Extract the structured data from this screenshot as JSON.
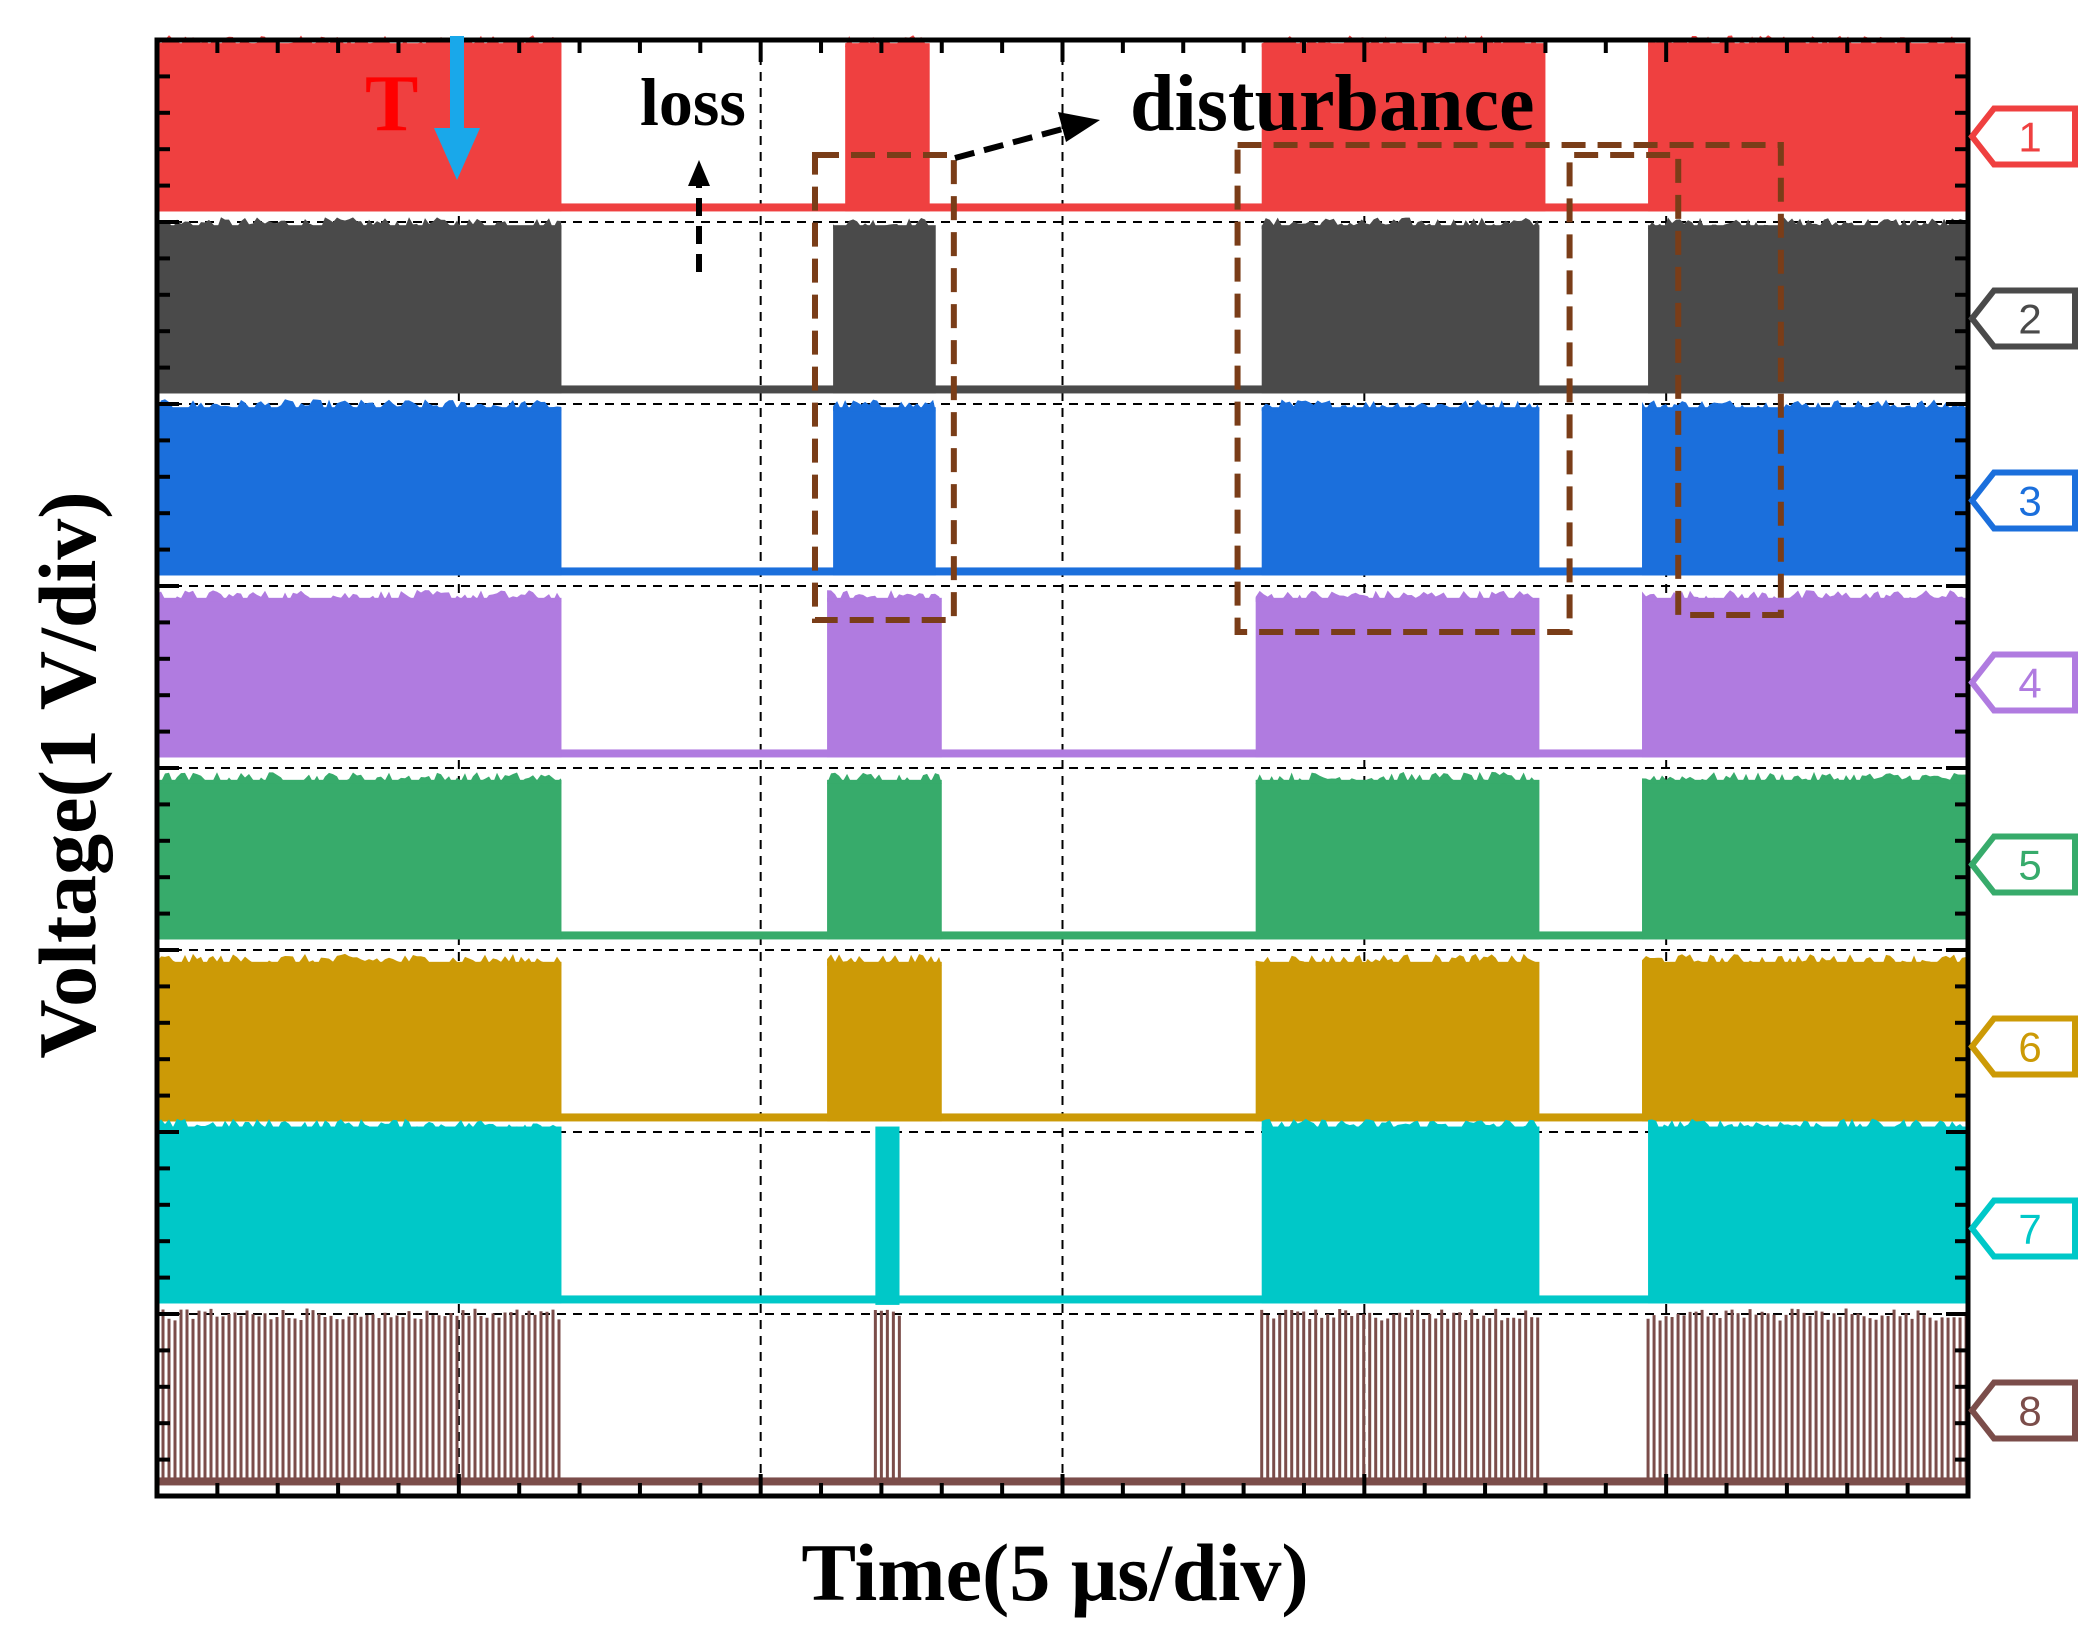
{
  "chart_data": {
    "type": "oscilloscope",
    "title": "",
    "xlabel": "Time(5 μs/div)",
    "ylabel": "Voltage(1 V/div)",
    "x_divisions": 6,
    "y_divisions": 8,
    "x_range_us": [
      0,
      30
    ],
    "trigger_label": "T",
    "trigger_time_us": 5.0,
    "annotations": [
      {
        "text": "loss",
        "time_us": 9.0
      },
      {
        "text": "disturbance",
        "time_us": 16.0
      }
    ],
    "highlight_windows_us": [
      [
        10.9,
        13.2
      ],
      [
        17.9,
        26.9
      ]
    ],
    "channels": [
      {
        "name": "1",
        "color": "#ef4040",
        "high_intervals_us": [
          [
            0,
            6.7
          ],
          [
            11.4,
            12.8
          ],
          [
            18.3,
            23.0
          ],
          [
            24.7,
            30
          ]
        ],
        "high_level_div": 0.95
      },
      {
        "name": "2",
        "color": "#4a4a4a",
        "high_intervals_us": [
          [
            0,
            6.7
          ],
          [
            11.2,
            12.9
          ],
          [
            18.3,
            22.9
          ],
          [
            24.7,
            30
          ]
        ],
        "high_level_div": 0.95
      },
      {
        "name": "3",
        "color": "#1b6fdc",
        "high_intervals_us": [
          [
            0,
            6.7
          ],
          [
            11.2,
            12.9
          ],
          [
            18.3,
            22.9
          ],
          [
            24.6,
            30
          ]
        ],
        "high_level_div": 0.95
      },
      {
        "name": "4",
        "color": "#b07be0",
        "high_intervals_us": [
          [
            0,
            6.7
          ],
          [
            11.1,
            13.0
          ],
          [
            18.2,
            22.9
          ],
          [
            24.6,
            30
          ]
        ],
        "high_level_div": 0.9
      },
      {
        "name": "5",
        "color": "#37ab6b",
        "high_intervals_us": [
          [
            0,
            6.7
          ],
          [
            11.1,
            13.0
          ],
          [
            18.2,
            22.9
          ],
          [
            24.6,
            30
          ]
        ],
        "high_level_div": 0.9
      },
      {
        "name": "6",
        "color": "#cc9a06",
        "high_intervals_us": [
          [
            0,
            6.7
          ],
          [
            11.1,
            13.0
          ],
          [
            18.2,
            22.9
          ],
          [
            24.6,
            30
          ]
        ],
        "high_level_div": 0.9
      },
      {
        "name": "7",
        "color": "#00c8c8",
        "high_intervals_us": [
          [
            0,
            6.7
          ],
          [
            18.3,
            22.9
          ],
          [
            24.7,
            30
          ]
        ],
        "high_level_div": 1.0
      },
      {
        "name": "8",
        "color": "#7b4d4a",
        "high_intervals_us": [
          [
            0,
            6.7
          ],
          [
            11.9,
            12.3
          ],
          [
            18.3,
            22.9
          ],
          [
            24.7,
            30
          ]
        ],
        "high_level_div": 1.0
      }
    ]
  }
}
